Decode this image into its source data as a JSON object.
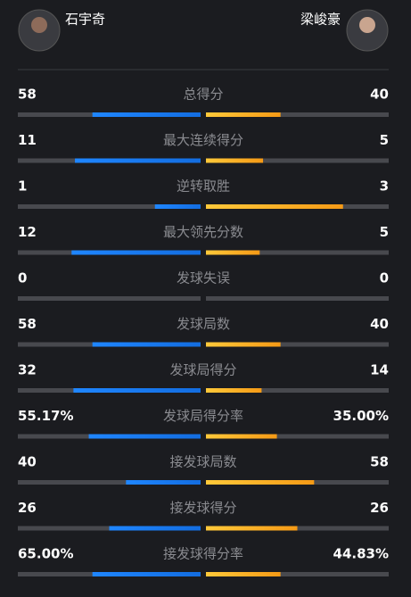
{
  "header": {
    "left_player": "石宇奇",
    "right_player": "梁峻豪"
  },
  "stats": [
    {
      "label": "总得分",
      "left": 58,
      "right": 40
    },
    {
      "label": "最大连续得分",
      "left": 11,
      "right": 5
    },
    {
      "label": "逆转取胜",
      "left": 1,
      "right": 3
    },
    {
      "label": "最大领先分数",
      "left": 12,
      "right": 5
    },
    {
      "label": "发球失误",
      "left": 0,
      "right": 0
    },
    {
      "label": "发球局数",
      "left": 58,
      "right": 40
    },
    {
      "label": "发球局得分",
      "left": 32,
      "right": 14
    },
    {
      "label": "发球局得分率",
      "left": 55.17,
      "left_label": "55.17%",
      "right": 35.0,
      "right_label": "35.00%"
    },
    {
      "label": "接发球局数",
      "left": 40,
      "right": 58
    },
    {
      "label": "接发球得分",
      "left": 26,
      "right": 26
    },
    {
      "label": "接发球得分率",
      "left": 65.0,
      "left_label": "65.00%",
      "right": 44.83,
      "right_label": "44.83%"
    }
  ]
}
